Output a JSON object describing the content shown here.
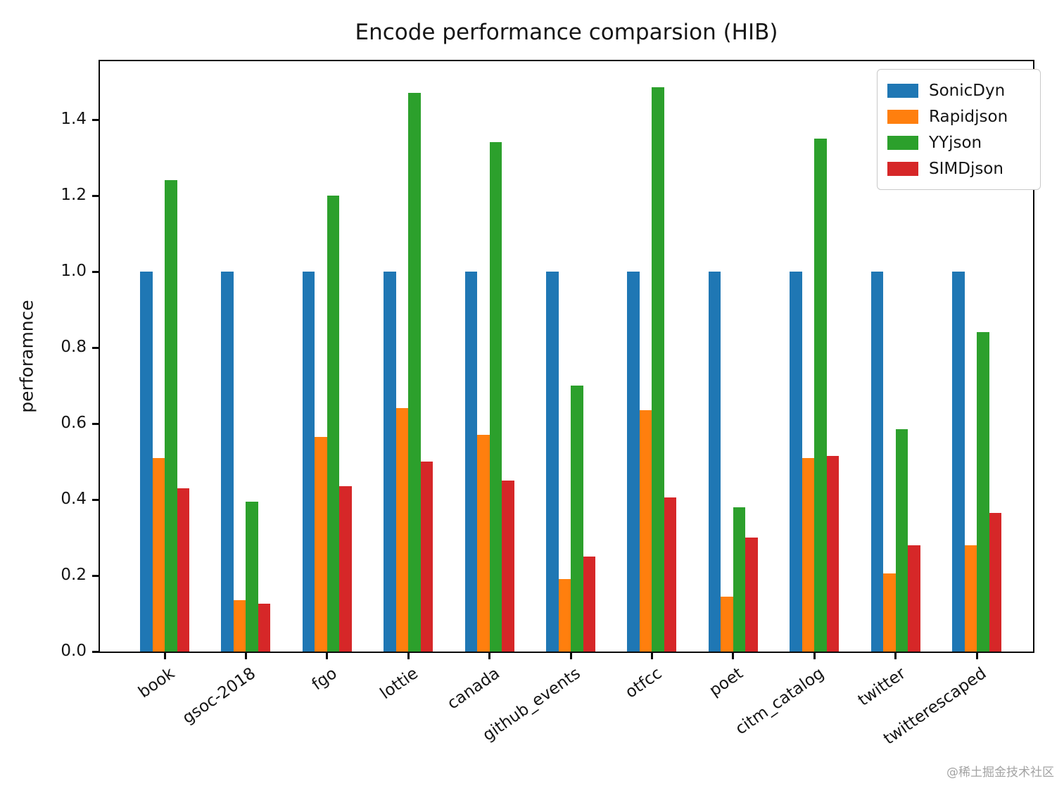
{
  "page": {
    "watermark": "@稀土掘金技术社区"
  },
  "chart_data": {
    "type": "bar",
    "title": "Encode performance comparsion (HIB)",
    "xlabel": "",
    "ylabel": "perforamnce",
    "categories": [
      "book",
      "gsoc-2018",
      "fgo",
      "lottie",
      "canada",
      "github_events",
      "otfcc",
      "poet",
      "citm_catalog",
      "twitter",
      "twitterescaped"
    ],
    "series": [
      {
        "name": "SonicDyn",
        "color": "#1f77b4",
        "values": [
          1.0,
          1.0,
          1.0,
          1.0,
          1.0,
          1.0,
          1.0,
          1.0,
          1.0,
          1.0,
          1.0
        ]
      },
      {
        "name": "Rapidjson",
        "color": "#ff7f0e",
        "values": [
          0.51,
          0.135,
          0.565,
          0.64,
          0.57,
          0.19,
          0.635,
          0.145,
          0.51,
          0.205,
          0.28
        ]
      },
      {
        "name": "YYjson",
        "color": "#2ca02c",
        "values": [
          1.24,
          0.395,
          1.2,
          1.47,
          1.34,
          0.7,
          1.485,
          0.38,
          1.35,
          0.585,
          0.84
        ]
      },
      {
        "name": "SIMDjson",
        "color": "#d62728",
        "values": [
          0.43,
          0.125,
          0.435,
          0.5,
          0.45,
          0.25,
          0.405,
          0.3,
          0.515,
          0.28,
          0.365
        ]
      }
    ],
    "yticks": [
      0.0,
      0.2,
      0.4,
      0.6,
      0.8,
      1.0,
      1.2,
      1.4
    ],
    "ylim": [
      0,
      1.561
    ],
    "grid": false,
    "legend_position": "upper right",
    "x_tick_rotation_deg": 35
  }
}
